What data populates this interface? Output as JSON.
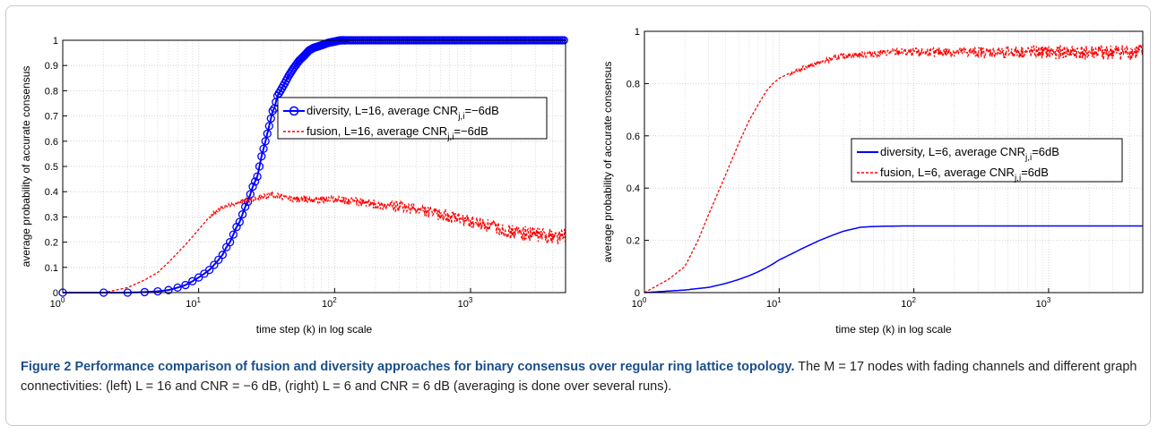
{
  "figure": {
    "label": "Figure 2",
    "title": "Performance comparison of fusion and diversity approaches for binary consensus over regular ring lattice topology.",
    "body": "The M = 17 nodes with fading channels and different graph connectivities: (left) L = 16 and CNR = −6 dB, (right) L = 6 and CNR = 6 dB (averaging is done over several runs)."
  },
  "colors": {
    "diversity": "#0000ff",
    "fusion": "#ff0000",
    "grid": "#c8c8c8",
    "axis": "#000000"
  },
  "chart_data": [
    {
      "type": "line",
      "position": "left",
      "xscale": "log",
      "xlim": [
        1,
        5000
      ],
      "ylim": [
        0,
        1
      ],
      "xticks": [
        1,
        10,
        100,
        1000
      ],
      "xtick_labels": [
        "10^0",
        "10^1",
        "10^2",
        "10^3"
      ],
      "yticks": [
        0,
        0.1,
        0.2,
        0.3,
        0.4,
        0.5,
        0.6,
        0.7,
        0.8,
        0.9,
        1
      ],
      "ytick_labels": [
        "0",
        "0.1",
        "0.2",
        "0.3",
        "0.4",
        "0.5",
        "0.6",
        "0.7",
        "0.8",
        "0.9",
        "1"
      ],
      "xlabel": "time step (k) in log scale",
      "ylabel": "average probability of accurate consensus",
      "grid": true,
      "legend_position": "right-upper-middle",
      "series": [
        {
          "name": "diversity, L=16, average CNR",
          "subscript": "j,i",
          "suffix": "=−6dB",
          "color_key": "diversity",
          "style": "solid-circle-markers",
          "x": [
            1,
            2,
            3,
            4,
            5,
            6,
            7,
            8,
            9,
            10,
            11,
            12,
            13,
            14,
            15,
            16,
            17,
            18,
            19,
            20,
            21,
            22,
            23,
            24,
            25,
            26,
            27,
            28,
            29,
            30,
            31,
            32,
            33,
            34,
            35,
            36,
            38,
            40,
            43,
            46,
            50,
            55,
            60,
            65,
            70,
            80,
            90,
            100,
            110,
            120,
            140,
            160,
            200,
            300,
            500,
            1000,
            2000,
            5000
          ],
          "y": [
            0,
            0,
            0,
            0.002,
            0.005,
            0.01,
            0.02,
            0.03,
            0.045,
            0.06,
            0.075,
            0.09,
            0.11,
            0.13,
            0.15,
            0.18,
            0.2,
            0.23,
            0.26,
            0.28,
            0.31,
            0.34,
            0.36,
            0.39,
            0.42,
            0.44,
            0.46,
            0.5,
            0.54,
            0.57,
            0.6,
            0.63,
            0.66,
            0.69,
            0.72,
            0.73,
            0.78,
            0.8,
            0.83,
            0.86,
            0.89,
            0.92,
            0.94,
            0.96,
            0.97,
            0.98,
            0.99,
            0.995,
            1,
            1,
            1,
            1,
            1,
            1,
            1,
            1,
            1,
            1
          ]
        },
        {
          "name": "fusion, L=16, average CNR",
          "subscript": "j,i",
          "suffix": "=−6dB",
          "color_key": "fusion",
          "style": "dashed-noisy",
          "x": [
            1,
            2,
            3,
            4,
            5,
            6,
            8,
            10,
            12,
            15,
            18,
            20,
            25,
            30,
            35,
            40,
            50,
            60,
            80,
            100,
            150,
            200,
            300,
            500,
            700,
            1000,
            1500,
            2000,
            3000,
            5000
          ],
          "y": [
            0,
            0,
            0.02,
            0.05,
            0.08,
            0.12,
            0.19,
            0.25,
            0.3,
            0.34,
            0.35,
            0.36,
            0.37,
            0.38,
            0.39,
            0.38,
            0.37,
            0.37,
            0.37,
            0.37,
            0.36,
            0.35,
            0.34,
            0.32,
            0.3,
            0.28,
            0.26,
            0.24,
            0.23,
            0.22
          ]
        }
      ]
    },
    {
      "type": "line",
      "position": "right",
      "xscale": "log",
      "xlim": [
        1,
        5000
      ],
      "ylim": [
        0,
        1
      ],
      "xticks": [
        1,
        10,
        100,
        1000
      ],
      "xtick_labels": [
        "10^0",
        "10^1",
        "10^2",
        "10^3"
      ],
      "yticks": [
        0,
        0.2,
        0.4,
        0.6,
        0.8,
        1
      ],
      "ytick_labels": [
        "0",
        "0.2",
        "0.4",
        "0.6",
        "0.8",
        "1"
      ],
      "xlabel": "time step (k) in log scale",
      "ylabel": "average probability of accurate consensus",
      "grid": true,
      "legend_position": "right-middle",
      "series": [
        {
          "name": "diversity, L=6, average CNR",
          "subscript": "j,i",
          "suffix": "=6dB",
          "color_key": "diversity",
          "style": "solid",
          "x": [
            1,
            2,
            3,
            4,
            5,
            6,
            7,
            8,
            9,
            10,
            12,
            15,
            20,
            25,
            30,
            40,
            50,
            60,
            80,
            100,
            200,
            500,
            1000,
            5000
          ],
          "y": [
            0,
            0.01,
            0.02,
            0.035,
            0.05,
            0.065,
            0.08,
            0.095,
            0.11,
            0.125,
            0.145,
            0.17,
            0.2,
            0.22,
            0.235,
            0.25,
            0.253,
            0.254,
            0.255,
            0.255,
            0.255,
            0.255,
            0.255,
            0.255
          ]
        },
        {
          "name": "fusion, L=6, average CNR",
          "subscript": "j,i",
          "suffix": "=6dB",
          "color_key": "fusion",
          "style": "dashed-noisy",
          "x": [
            1,
            1.5,
            2,
            2.5,
            3,
            3.5,
            4,
            5,
            6,
            7,
            8,
            9,
            10,
            12,
            15,
            20,
            25,
            30,
            40,
            50,
            60,
            80,
            100,
            200,
            500,
            1000,
            2000,
            5000
          ],
          "y": [
            0,
            0.05,
            0.1,
            0.2,
            0.3,
            0.38,
            0.45,
            0.57,
            0.66,
            0.72,
            0.77,
            0.8,
            0.82,
            0.84,
            0.86,
            0.88,
            0.895,
            0.905,
            0.91,
            0.915,
            0.918,
            0.92,
            0.92,
            0.92,
            0.92,
            0.92,
            0.92,
            0.92
          ]
        }
      ]
    }
  ]
}
